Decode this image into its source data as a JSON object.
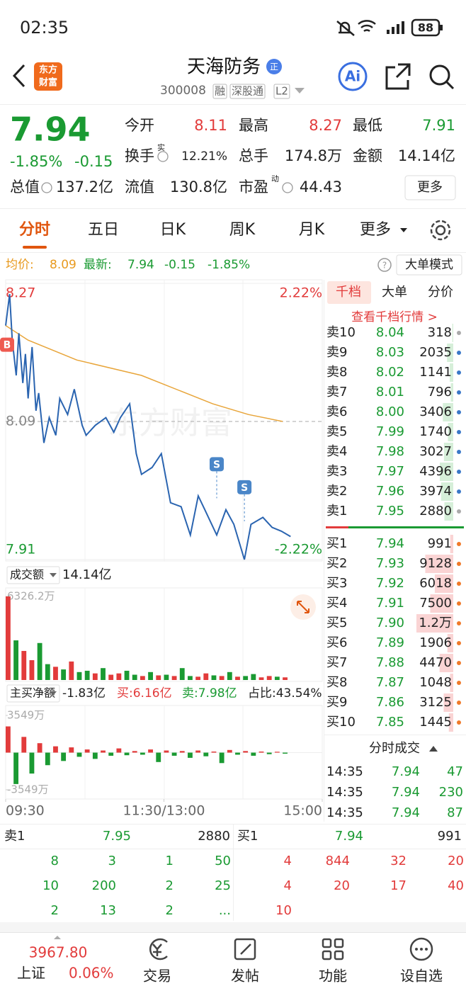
{
  "status_bar": {
    "time": "02:35",
    "battery": "88"
  },
  "header": {
    "logo": [
      "东方",
      "财富"
    ],
    "title": "天海防务",
    "badge": "正",
    "code": "300008",
    "tags": [
      "融",
      "深股通",
      "L2"
    ],
    "ai": "Ai"
  },
  "quote": {
    "price": "7.94",
    "change_pct": "-1.85%",
    "change": "-0.15",
    "stats": [
      {
        "label": "今开",
        "value": "8.11",
        "tone": "up"
      },
      {
        "label": "最高",
        "value": "8.27",
        "tone": "up"
      },
      {
        "label": "最低",
        "value": "7.91",
        "tone": "down"
      },
      {
        "label": "换手",
        "sup": "实",
        "value": "12.21%"
      },
      {
        "label": "总手",
        "value": "174.8万"
      },
      {
        "label": "金额",
        "value": "14.14亿"
      },
      {
        "label": "总值",
        "value": "137.2亿"
      },
      {
        "label": "流值",
        "value": "130.8亿"
      },
      {
        "label": "市盈",
        "sup": "动",
        "value": "44.43"
      }
    ],
    "more": "更多"
  },
  "tabs": [
    "分时",
    "五日",
    "日K",
    "周K",
    "月K",
    "更多"
  ],
  "summary": {
    "avg_label": "均价:",
    "avg": "8.09",
    "last_label": "最新:",
    "last": "7.94",
    "change": "-0.15",
    "change_pct": "-1.85%",
    "mode": "大单模式"
  },
  "watermark": "东方财富",
  "chart_data": [
    {
      "type": "line",
      "xlim": [
        0,
        240
      ],
      "ylim": [
        7.91,
        8.27
      ],
      "yticks": [
        8.27,
        8.09,
        7.91
      ],
      "y2lim": [
        -2.22,
        2.22
      ],
      "y2ticks": [
        {
          "value": 2.22,
          "label": "2.22%"
        },
        {
          "value": -2.22,
          "label": "-2.22%"
        }
      ],
      "xticks": [
        {
          "value": 0,
          "label": "09:30"
        },
        {
          "value": 120,
          "label": "11:30/13:00"
        },
        {
          "value": 240,
          "label": "15:00"
        }
      ],
      "series": [
        {
          "color": "#2a64b0",
          "x": [
            0,
            3,
            5,
            8,
            10,
            13,
            15,
            17,
            20,
            23,
            25,
            29,
            33,
            38,
            41,
            47,
            52,
            58,
            61,
            68,
            76,
            82,
            87,
            94,
            99,
            103,
            111,
            118,
            125,
            133,
            140,
            146,
            151,
            160,
            167,
            173,
            181,
            186,
            195,
            202,
            209,
            216
          ],
          "values": [
            8.215,
            8.256,
            8.196,
            8.15,
            8.205,
            8.14,
            8.178,
            8.12,
            8.187,
            8.104,
            8.127,
            8.062,
            8.095,
            8.072,
            8.12,
            8.099,
            8.132,
            8.085,
            8.072,
            8.085,
            8.095,
            8.076,
            8.095,
            8.113,
            8.048,
            8.021,
            8.03,
            8.048,
            7.984,
            7.979,
            7.942,
            7.993,
            7.975,
            7.942,
            7.975,
            7.956,
            7.91,
            7.956,
            7.965,
            7.952,
            7.947,
            7.94
          ]
        },
        {
          "color": "#e8a53a",
          "x": [
            0,
            17,
            54,
            103,
            157,
            184,
            210
          ],
          "values": [
            8.215,
            8.196,
            8.17,
            8.15,
            8.113,
            8.099,
            8.09
          ]
        }
      ],
      "markers": [
        {
          "label": "B",
          "x": 0,
          "value": 8.19
        },
        {
          "label": "S",
          "x": 160,
          "value": 7.99
        },
        {
          "label": "S",
          "x": 181,
          "value": 7.96
        }
      ]
    },
    {
      "type": "bar",
      "xlim": [
        0,
        240
      ],
      "ylim": [
        0,
        6326.2
      ],
      "yticks": [
        {
          "value": 6326.2,
          "label": "6326.2万"
        }
      ],
      "x": [
        0,
        6,
        12,
        18,
        24,
        30,
        36,
        42,
        48,
        54,
        60,
        66,
        72,
        78,
        84,
        90,
        96,
        102,
        108,
        114,
        120,
        126,
        132,
        138,
        144,
        150,
        156,
        162,
        168,
        174,
        180,
        186,
        192,
        198,
        204,
        210
      ],
      "series": [
        {
          "color": "#e23b3b",
          "values": [
            6326.2,
            null,
            2200,
            1500,
            null,
            null,
            1000,
            null,
            1400,
            null,
            null,
            500,
            null,
            400,
            500,
            null,
            null,
            300,
            null,
            350,
            null,
            300,
            null,
            null,
            250,
            500,
            null,
            300,
            null,
            250,
            null,
            null,
            200,
            300,
            null,
            200
          ]
        },
        {
          "color": "#1a9a32",
          "values": [
            null,
            3000,
            null,
            null,
            2800,
            1200,
            null,
            800,
            null,
            600,
            700,
            null,
            900,
            null,
            null,
            700,
            400,
            null,
            600,
            null,
            400,
            null,
            900,
            300,
            null,
            null,
            350,
            null,
            600,
            null,
            300,
            450,
            null,
            null,
            250,
            null
          ]
        }
      ]
    },
    {
      "type": "bar",
      "xlim": [
        0,
        240
      ],
      "ylim": [
        -3549,
        3549
      ],
      "yticks": [
        {
          "value": 3549,
          "label": "3549万"
        },
        {
          "value": -3549,
          "label": "-3549万"
        }
      ],
      "colors": {
        "positive": "#e23b3b",
        "negative": "#1a9a32"
      },
      "x": [
        0,
        6,
        12,
        18,
        24,
        30,
        36,
        42,
        48,
        54,
        60,
        66,
        72,
        78,
        84,
        90,
        96,
        102,
        108,
        114,
        120,
        126,
        132,
        138,
        144,
        150,
        156,
        162,
        168,
        174,
        180,
        186,
        192,
        198,
        204,
        210
      ],
      "values": [
        2500,
        -3000,
        1500,
        -2000,
        900,
        -1200,
        600,
        -800,
        500,
        -400,
        300,
        -600,
        200,
        -300,
        400,
        -250,
        150,
        -200,
        300,
        -900,
        200,
        -300,
        150,
        -500,
        200,
        -350,
        100,
        -1000,
        250,
        -200,
        150,
        -300,
        100,
        -150,
        80,
        -100
      ]
    }
  ],
  "volume_header": {
    "label": "成交额",
    "value": "14.14亿"
  },
  "flow_header": {
    "label": "主买净额",
    "value": "-1.83亿",
    "buy": "买:6.16亿",
    "sell": "卖:7.98亿",
    "ratio": "占比:43.54%"
  },
  "order_book": {
    "tabs": [
      "千档",
      "大单",
      "分价"
    ],
    "link": "查看千档行情 >",
    "sell": [
      {
        "label": "卖10",
        "price": "8.04",
        "volume": 318
      },
      {
        "label": "卖9",
        "price": "8.03",
        "volume": 2035
      },
      {
        "label": "卖8",
        "price": "8.02",
        "volume": 1141
      },
      {
        "label": "卖7",
        "price": "8.01",
        "volume": 796
      },
      {
        "label": "卖6",
        "price": "8.00",
        "volume": 3406
      },
      {
        "label": "卖5",
        "price": "7.99",
        "volume": 1740
      },
      {
        "label": "卖4",
        "price": "7.98",
        "volume": 3027
      },
      {
        "label": "卖3",
        "price": "7.97",
        "volume": 4396
      },
      {
        "label": "卖2",
        "price": "7.96",
        "volume": 3974
      },
      {
        "label": "卖1",
        "price": "7.95",
        "volume": 2880
      }
    ],
    "buy": [
      {
        "label": "买1",
        "price": "7.94",
        "volume": 991
      },
      {
        "label": "买2",
        "price": "7.93",
        "volume": 9128
      },
      {
        "label": "买3",
        "price": "7.92",
        "volume": 6018
      },
      {
        "label": "买4",
        "price": "7.91",
        "volume": 7500
      },
      {
        "label": "买5",
        "price": "7.90",
        "volume": 12000,
        "volume_label": "1.2万"
      },
      {
        "label": "买6",
        "price": "7.89",
        "volume": 1906
      },
      {
        "label": "买7",
        "price": "7.88",
        "volume": 4470
      },
      {
        "label": "买8",
        "price": "7.87",
        "volume": 1048
      },
      {
        "label": "买9",
        "price": "7.86",
        "volume": 3125
      },
      {
        "label": "买10",
        "price": "7.85",
        "volume": 1445
      }
    ]
  },
  "trades": {
    "title": "分时成交",
    "rows": [
      [
        "14:35",
        "7.94",
        "47"
      ],
      [
        "14:35",
        "7.94",
        "230"
      ],
      [
        "14:35",
        "7.94",
        "87"
      ]
    ]
  },
  "level1": {
    "sell": {
      "label": "卖1",
      "price": "7.95",
      "volume": "2880"
    },
    "buy": {
      "label": "买1",
      "price": "7.94",
      "volume": "991"
    },
    "left": [
      [
        "8",
        "3",
        "1",
        "50"
      ],
      [
        "10",
        "200",
        "2",
        "25"
      ],
      [
        "2",
        "13",
        "2",
        "..."
      ]
    ],
    "right": [
      [
        "4",
        "844",
        "32",
        "20"
      ],
      [
        "4",
        "20",
        "17",
        "40"
      ],
      [
        "10"
      ]
    ]
  },
  "bottom_nav": {
    "index_value": "3967.80",
    "index_name": "上证",
    "index_change": "0.06%",
    "items": [
      "交易",
      "发帖",
      "功能",
      "设自选"
    ]
  }
}
